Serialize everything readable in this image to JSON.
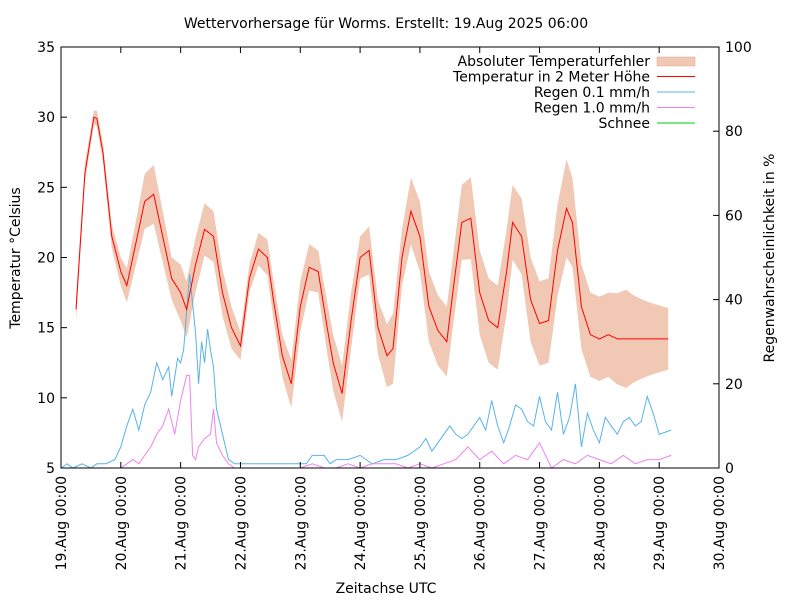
{
  "chart_data": {
    "type": "line",
    "title": "Wettervorhersage für Worms. Erstellt: 19.Aug 2025 06:00",
    "xlabel": "Zeitachse UTC",
    "ylabel": "Temperatur °Celsius",
    "y2label": "Regenwahrscheinlichkeit in %",
    "xlim": [
      0,
      11
    ],
    "ylim": [
      5,
      35
    ],
    "y2lim": [
      0,
      100
    ],
    "x_unit": "days since 19.Aug 00:00 UTC",
    "x_ticks": [
      "19.Aug 00:00",
      "20.Aug 00:00",
      "21.Aug 00:00",
      "22.Aug 00:00",
      "23.Aug 00:00",
      "24.Aug 00:00",
      "25.Aug 00:00",
      "26.Aug 00:00",
      "27.Aug 00:00",
      "28.Aug 00:00",
      "29.Aug 00:00",
      "30.Aug 00:00"
    ],
    "y_ticks": [
      "5",
      "10",
      "15",
      "20",
      "25",
      "30",
      "35"
    ],
    "y2_ticks": [
      "0",
      "20",
      "40",
      "60",
      "80",
      "100"
    ],
    "grid": false,
    "legend_position": "top-right",
    "legend": [
      {
        "label": "Absoluter Temperaturfehler",
        "color": "#f0c8b4",
        "kind": "band"
      },
      {
        "label": "Temperatur in 2 Meter Höhe",
        "color": "#ff0000",
        "kind": "line"
      },
      {
        "label": "Regen 0.1 mm/h",
        "color": "#56b4e9",
        "kind": "line"
      },
      {
        "label": "Regen 1.0 mm/h",
        "color": "#ee82ee",
        "kind": "line"
      },
      {
        "label": "Schnee",
        "color": "#00cc00",
        "kind": "line"
      }
    ],
    "temperature": {
      "name": "Temperatur in 2 Meter Höhe",
      "x": [
        0.25,
        0.4,
        0.55,
        0.6,
        0.7,
        0.85,
        1.0,
        1.1,
        1.25,
        1.4,
        1.55,
        1.7,
        1.85,
        2.0,
        2.1,
        2.25,
        2.4,
        2.55,
        2.7,
        2.85,
        3.0,
        3.15,
        3.3,
        3.45,
        3.55,
        3.7,
        3.85,
        4.0,
        4.15,
        4.3,
        4.45,
        4.55,
        4.7,
        4.85,
        5.0,
        5.15,
        5.3,
        5.45,
        5.55,
        5.7,
        5.85,
        6.0,
        6.15,
        6.3,
        6.45,
        6.55,
        6.7,
        6.85,
        7.0,
        7.15,
        7.3,
        7.45,
        7.55,
        7.7,
        7.85,
        8.0,
        8.15,
        8.3,
        8.45,
        8.55,
        8.7,
        8.85,
        9.0,
        9.15,
        9.3,
        9.45,
        9.55,
        9.7,
        9.85,
        10.0,
        10.15
      ],
      "values": [
        16.3,
        26.0,
        30.0,
        29.9,
        27.5,
        21.5,
        19.0,
        18.0,
        21.0,
        24.0,
        24.5,
        21.5,
        18.5,
        17.5,
        16.3,
        19.5,
        22.0,
        21.5,
        17.5,
        15.0,
        13.7,
        18.5,
        20.6,
        20.0,
        17.0,
        13.0,
        11.0,
        16.5,
        19.3,
        19.0,
        15.0,
        12.5,
        10.3,
        15.5,
        20.0,
        20.5,
        15.0,
        13.0,
        13.5,
        20.0,
        23.3,
        21.5,
        16.5,
        14.8,
        14.0,
        17.5,
        22.5,
        22.8,
        17.5,
        15.5,
        15.0,
        19.0,
        22.5,
        21.5,
        17.0,
        15.3,
        15.5,
        20.5,
        23.5,
        22.5,
        16.5,
        14.5,
        14.2,
        14.5,
        14.2,
        14.2,
        14.2,
        14.2,
        14.2,
        14.2,
        14.2
      ]
    },
    "temperature_error": {
      "name": "Absoluter Temperaturfehler",
      "x": [
        0.25,
        0.55,
        1.0,
        1.1,
        1.5,
        1.85,
        2.0,
        2.1,
        2.55,
        2.85,
        3.0,
        3.15,
        3.35,
        3.7,
        3.85,
        4.0,
        4.3,
        4.55,
        4.7,
        4.85,
        5.0,
        5.35,
        5.55,
        5.7,
        5.9,
        6.15,
        6.45,
        6.6,
        6.9,
        7.15,
        7.45,
        7.6,
        7.85,
        8.15,
        8.45,
        8.6,
        8.85,
        9.15,
        9.45,
        9.6,
        9.9,
        10.15
      ],
      "values_abs_error": [
        0.8,
        0.5,
        1.0,
        1.2,
        2.2,
        1.5,
        2.0,
        2.0,
        1.8,
        1.5,
        1.0,
        1.0,
        1.2,
        1.5,
        1.7,
        1.8,
        1.5,
        2.0,
        2.0,
        2.0,
        1.5,
        2.0,
        2.5,
        2.0,
        2.5,
        2.5,
        2.5,
        2.5,
        3.0,
        3.0,
        3.0,
        2.5,
        3.0,
        3.0,
        3.5,
        3.0,
        3.0,
        3.0,
        3.5,
        3.0,
        2.5,
        2.2
      ]
    },
    "rain_01": {
      "name": "Regen 0.1 mm/h",
      "axis": "y2",
      "x": [
        0.0,
        0.1,
        0.2,
        0.35,
        0.5,
        0.6,
        0.75,
        0.9,
        1.0,
        1.1,
        1.2,
        1.3,
        1.35,
        1.4,
        1.5,
        1.6,
        1.7,
        1.8,
        1.85,
        1.95,
        2.0,
        2.05,
        2.15,
        2.25,
        2.3,
        2.35,
        2.4,
        2.45,
        2.5,
        2.55,
        2.6,
        2.7,
        2.8,
        2.9,
        3.0,
        3.2,
        3.4,
        3.6,
        3.8,
        4.0,
        4.1,
        4.2,
        4.4,
        4.5,
        4.6,
        4.8,
        5.0,
        5.2,
        5.4,
        5.6,
        5.8,
        6.0,
        6.1,
        6.2,
        6.3,
        6.5,
        6.6,
        6.7,
        6.8,
        7.0,
        7.1,
        7.2,
        7.3,
        7.4,
        7.5,
        7.6,
        7.7,
        7.8,
        7.9,
        8.0,
        8.1,
        8.2,
        8.3,
        8.4,
        8.5,
        8.6,
        8.7,
        8.8,
        8.9,
        9.0,
        9.1,
        9.2,
        9.3,
        9.4,
        9.5,
        9.6,
        9.7,
        9.8,
        9.9,
        10.0,
        10.2
      ],
      "values": [
        0,
        1,
        0,
        1,
        0,
        1,
        1,
        2,
        5,
        10,
        14,
        9,
        12,
        15,
        18,
        25,
        21,
        24,
        17,
        26,
        25,
        28,
        46,
        32,
        20,
        30,
        25,
        33,
        28,
        24,
        14,
        8,
        2,
        1,
        1,
        1,
        1,
        1,
        1,
        1,
        1,
        3,
        3,
        1,
        2,
        2,
        3,
        1,
        2,
        2,
        3,
        5,
        7,
        4,
        6,
        10,
        8,
        7,
        8,
        12,
        9,
        16,
        10,
        6,
        10,
        15,
        14,
        11,
        10,
        17,
        11,
        9,
        18,
        8,
        12,
        20,
        5,
        13,
        9,
        6,
        12,
        10,
        8,
        11,
        12,
        10,
        11,
        17,
        13,
        8,
        9
      ]
    },
    "rain_10": {
      "name": "Regen 1.0 mm/h",
      "axis": "y2",
      "x": [
        1.0,
        1.1,
        1.2,
        1.3,
        1.4,
        1.5,
        1.6,
        1.7,
        1.8,
        1.9,
        2.0,
        2.1,
        2.15,
        2.2,
        2.25,
        2.3,
        2.4,
        2.5,
        2.55,
        2.6,
        2.7,
        2.8,
        2.9,
        3.2,
        3.4,
        3.6,
        3.8,
        4.0,
        4.2,
        4.4,
        4.6,
        4.8,
        5.0,
        5.2,
        5.4,
        5.6,
        5.8,
        6.0,
        6.2,
        6.4,
        6.6,
        6.8,
        7.0,
        7.2,
        7.4,
        7.6,
        7.8,
        8.0,
        8.2,
        8.4,
        8.6,
        8.8,
        9.0,
        9.2,
        9.4,
        9.6,
        9.8,
        10.0,
        10.2
      ],
      "values": [
        0,
        1,
        2,
        1,
        3,
        5,
        8,
        10,
        14,
        8,
        16,
        22,
        22,
        3,
        2,
        5,
        7,
        8,
        14,
        6,
        3,
        1,
        0,
        0,
        0,
        0,
        0,
        0,
        1,
        0,
        0,
        1,
        0,
        1,
        1,
        1,
        0,
        1,
        0,
        1,
        2,
        5,
        2,
        4,
        1,
        3,
        2,
        6,
        0,
        2,
        1,
        3,
        2,
        1,
        3,
        1,
        2,
        2,
        3
      ]
    },
    "snow": {
      "name": "Schnee",
      "axis": "y2",
      "x": [],
      "values": []
    }
  }
}
